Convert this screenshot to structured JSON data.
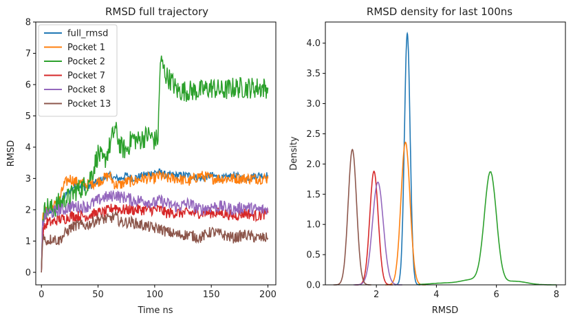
{
  "chart_data": [
    {
      "type": "line",
      "title": "RMSD full trajectory",
      "xlabel": "Time ns",
      "ylabel": "RMSD",
      "xlim": [
        -5,
        207
      ],
      "ylim": [
        -0.4,
        8
      ],
      "xticks": [
        0,
        50,
        100,
        150,
        200
      ],
      "yticks": [
        0,
        1,
        2,
        3,
        4,
        5,
        6,
        7,
        8
      ],
      "legend_position": "top-left",
      "series": [
        {
          "name": "full_rmsd",
          "color": "#1f77b4",
          "x": [
            0,
            1,
            5,
            10,
            15,
            20,
            25,
            30,
            40,
            50,
            55,
            60,
            65,
            70,
            75,
            80,
            90,
            100,
            105,
            110,
            120,
            130,
            140,
            150,
            160,
            170,
            180,
            190,
            200
          ],
          "y": [
            0,
            1.6,
            1.9,
            2.0,
            2.1,
            2.4,
            2.6,
            2.8,
            2.7,
            2.9,
            3.0,
            3.1,
            3.0,
            3.0,
            3.1,
            3.0,
            3.1,
            3.2,
            3.2,
            3.1,
            3.1,
            3.1,
            3.0,
            3.1,
            3.0,
            3.1,
            3.0,
            3.1,
            3.1
          ]
        },
        {
          "name": "Pocket 1",
          "color": "#ff7f0e",
          "x": [
            0,
            1,
            5,
            10,
            15,
            20,
            25,
            30,
            40,
            50,
            55,
            60,
            65,
            70,
            75,
            80,
            90,
            100,
            105,
            110,
            120,
            130,
            140,
            150,
            160,
            170,
            180,
            190,
            200
          ],
          "y": [
            0,
            1.7,
            2.0,
            2.1,
            2.2,
            2.8,
            3.0,
            2.9,
            2.8,
            2.9,
            3.0,
            3.1,
            2.8,
            2.8,
            2.9,
            2.9,
            3.0,
            3.0,
            3.1,
            3.0,
            3.0,
            2.9,
            3.1,
            3.0,
            3.0,
            3.0,
            3.0,
            3.0,
            3.0
          ]
        },
        {
          "name": "Pocket 2",
          "color": "#2ca02c",
          "x": [
            0,
            1,
            5,
            10,
            15,
            20,
            25,
            30,
            40,
            45,
            50,
            55,
            60,
            65,
            70,
            75,
            80,
            85,
            90,
            95,
            100,
            103,
            105,
            110,
            115,
            120,
            130,
            140,
            150,
            160,
            170,
            180,
            190,
            200
          ],
          "y": [
            0,
            1.8,
            2.1,
            2.0,
            2.2,
            2.3,
            2.4,
            2.6,
            2.8,
            3.2,
            3.8,
            3.5,
            4.0,
            4.6,
            4.0,
            3.9,
            4.3,
            4.2,
            4.3,
            4.4,
            4.2,
            4.3,
            6.8,
            6.3,
            6.1,
            5.8,
            5.8,
            5.8,
            5.9,
            5.8,
            5.9,
            5.9,
            5.9,
            5.9
          ]
        },
        {
          "name": "Pocket 7",
          "color": "#d62728",
          "x": [
            0,
            1,
            5,
            10,
            15,
            20,
            25,
            30,
            40,
            50,
            55,
            60,
            65,
            70,
            75,
            80,
            90,
            100,
            105,
            110,
            120,
            130,
            140,
            150,
            160,
            170,
            180,
            190,
            200
          ],
          "y": [
            0,
            1.3,
            1.6,
            1.6,
            1.7,
            1.7,
            1.8,
            1.8,
            1.8,
            1.9,
            1.9,
            2.0,
            2.1,
            2.0,
            2.0,
            2.0,
            2.0,
            2.0,
            2.0,
            1.9,
            1.9,
            1.9,
            1.9,
            1.9,
            1.9,
            1.8,
            1.9,
            1.8,
            1.9
          ]
        },
        {
          "name": "Pocket 8",
          "color": "#9467bd",
          "x": [
            0,
            1,
            5,
            10,
            15,
            20,
            25,
            30,
            40,
            50,
            55,
            60,
            65,
            70,
            75,
            80,
            90,
            100,
            105,
            110,
            120,
            130,
            140,
            150,
            160,
            170,
            180,
            190,
            200
          ],
          "y": [
            0,
            1.6,
            1.9,
            1.9,
            2.0,
            2.0,
            2.1,
            2.1,
            2.1,
            2.3,
            2.4,
            2.4,
            2.5,
            2.4,
            2.4,
            2.3,
            2.3,
            2.2,
            2.3,
            2.2,
            2.1,
            2.2,
            2.0,
            2.1,
            2.1,
            2.0,
            2.1,
            2.0,
            2.0
          ]
        },
        {
          "name": "Pocket 13",
          "color": "#8c564b",
          "x": [
            0,
            1,
            5,
            10,
            15,
            20,
            25,
            30,
            40,
            50,
            55,
            60,
            65,
            70,
            75,
            80,
            90,
            100,
            105,
            110,
            120,
            130,
            140,
            150,
            160,
            170,
            180,
            190,
            200
          ],
          "y": [
            0,
            1.1,
            1.0,
            1.1,
            1.0,
            1.2,
            1.4,
            1.5,
            1.5,
            1.7,
            1.7,
            1.7,
            1.8,
            1.6,
            1.6,
            1.6,
            1.5,
            1.4,
            1.4,
            1.3,
            1.2,
            1.2,
            1.1,
            1.3,
            1.2,
            1.1,
            1.2,
            1.1,
            1.1
          ]
        }
      ]
    },
    {
      "type": "line",
      "title": "RMSD density for last 100ns",
      "xlabel": "RMSD",
      "ylabel": "Density",
      "xlim": [
        0.3,
        8.3
      ],
      "ylim": [
        0,
        4.35
      ],
      "xticks": [
        2,
        4,
        6,
        8
      ],
      "yticks": [
        0.0,
        0.5,
        1.0,
        1.5,
        2.0,
        2.5,
        3.0,
        3.5,
        4.0
      ],
      "series": [
        {
          "color": "#1f77b4",
          "peak_x": 3.03,
          "peak_y": 4.16,
          "width": 0.095
        },
        {
          "color": "#ff7f0e",
          "peak_x": 2.97,
          "peak_y": 2.36,
          "width": 0.15
        },
        {
          "color": "#2ca02c",
          "peak_x": 5.8,
          "peak_y": 1.85,
          "width": 0.2
        },
        {
          "color": "#d62728",
          "peak_x": 1.92,
          "peak_y": 1.88,
          "width": 0.14
        },
        {
          "color": "#9467bd",
          "peak_x": 2.05,
          "peak_y": 1.7,
          "width": 0.18
        },
        {
          "color": "#8c564b",
          "peak_x": 1.2,
          "peak_y": 2.24,
          "width": 0.14
        }
      ]
    }
  ]
}
